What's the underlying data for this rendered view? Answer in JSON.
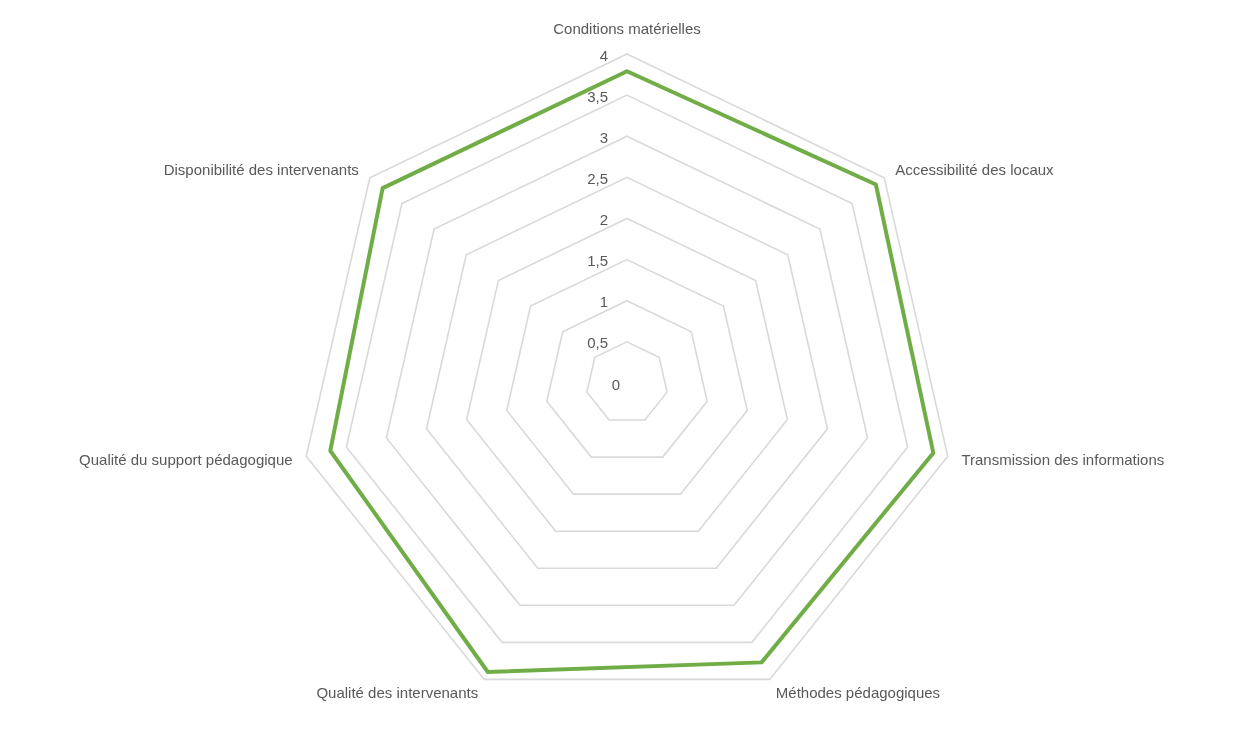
{
  "chart_data": {
    "type": "radar",
    "categories": [
      "Conditions matérielles",
      "Accessibilité des locaux",
      "Transmission des informations",
      "Méthodes pédagogiques",
      "Qualité des intervenants",
      "Qualité du support pédagogique",
      "Disponibilité des intervenants"
    ],
    "series": [
      {
        "color": "#70ad47",
        "values": [
          3.79,
          3.87,
          3.82,
          3.77,
          3.9,
          3.7,
          3.8
        ]
      }
    ],
    "ylim": [
      0,
      4
    ],
    "yticks": [
      {
        "value": 0,
        "label": "0"
      },
      {
        "value": 0.5,
        "label": "0,5"
      },
      1,
      {
        "value": 1.5,
        "label": "1,5"
      },
      2,
      {
        "value": 2.5,
        "label": "2,5"
      },
      3,
      {
        "value": 3.5,
        "label": "3,5"
      },
      4
    ],
    "grid": true
  }
}
